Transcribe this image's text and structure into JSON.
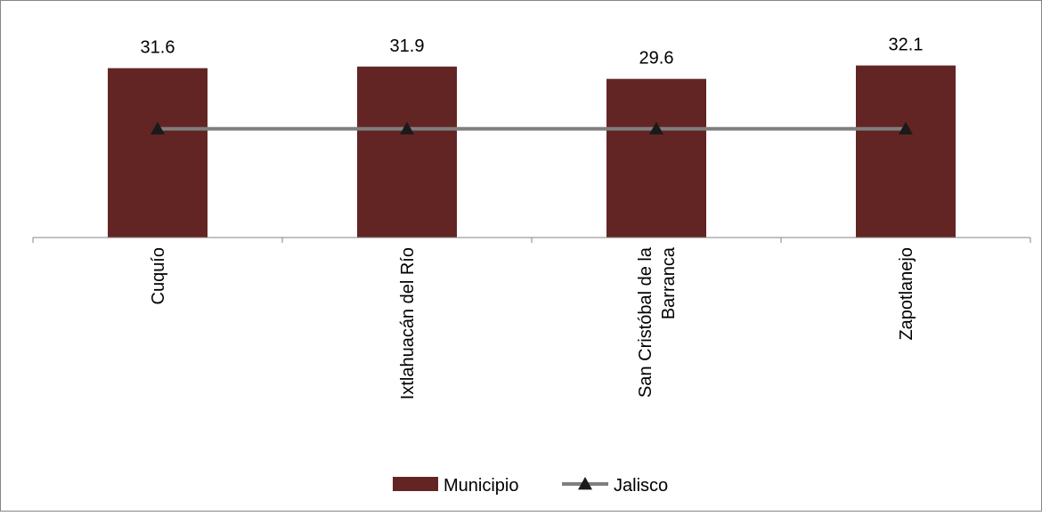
{
  "chart_data": {
    "type": "bar",
    "categories": [
      "Cuquío",
      "Ixtlahuacán del Río",
      "San Cristóbal de la Barranca",
      "Zapotlanejo"
    ],
    "category_label_lines": [
      [
        "Cuquío"
      ],
      [
        "Ixtlahuacán del Río"
      ],
      [
        "San Cristóbal de la",
        "Barranca"
      ],
      [
        "Zapotlanejo"
      ]
    ],
    "series": [
      {
        "name": "Municipio",
        "type": "bar",
        "values": [
          31.6,
          31.9,
          29.6,
          32.1
        ],
        "color": "#632523",
        "data_labels": [
          "31.6",
          "31.9",
          "29.6",
          "32.1"
        ]
      },
      {
        "name": "Jalisco",
        "type": "line",
        "values": [
          20.3,
          20.3,
          20.3,
          20.3
        ],
        "color": "#7f7f7f",
        "marker": "triangle",
        "marker_color": "#1a1a1a"
      }
    ],
    "ylim": [
      0,
      40
    ],
    "legend_position": "bottom",
    "grid": false,
    "frame_color": "#868686",
    "axis_color": "#868686"
  }
}
